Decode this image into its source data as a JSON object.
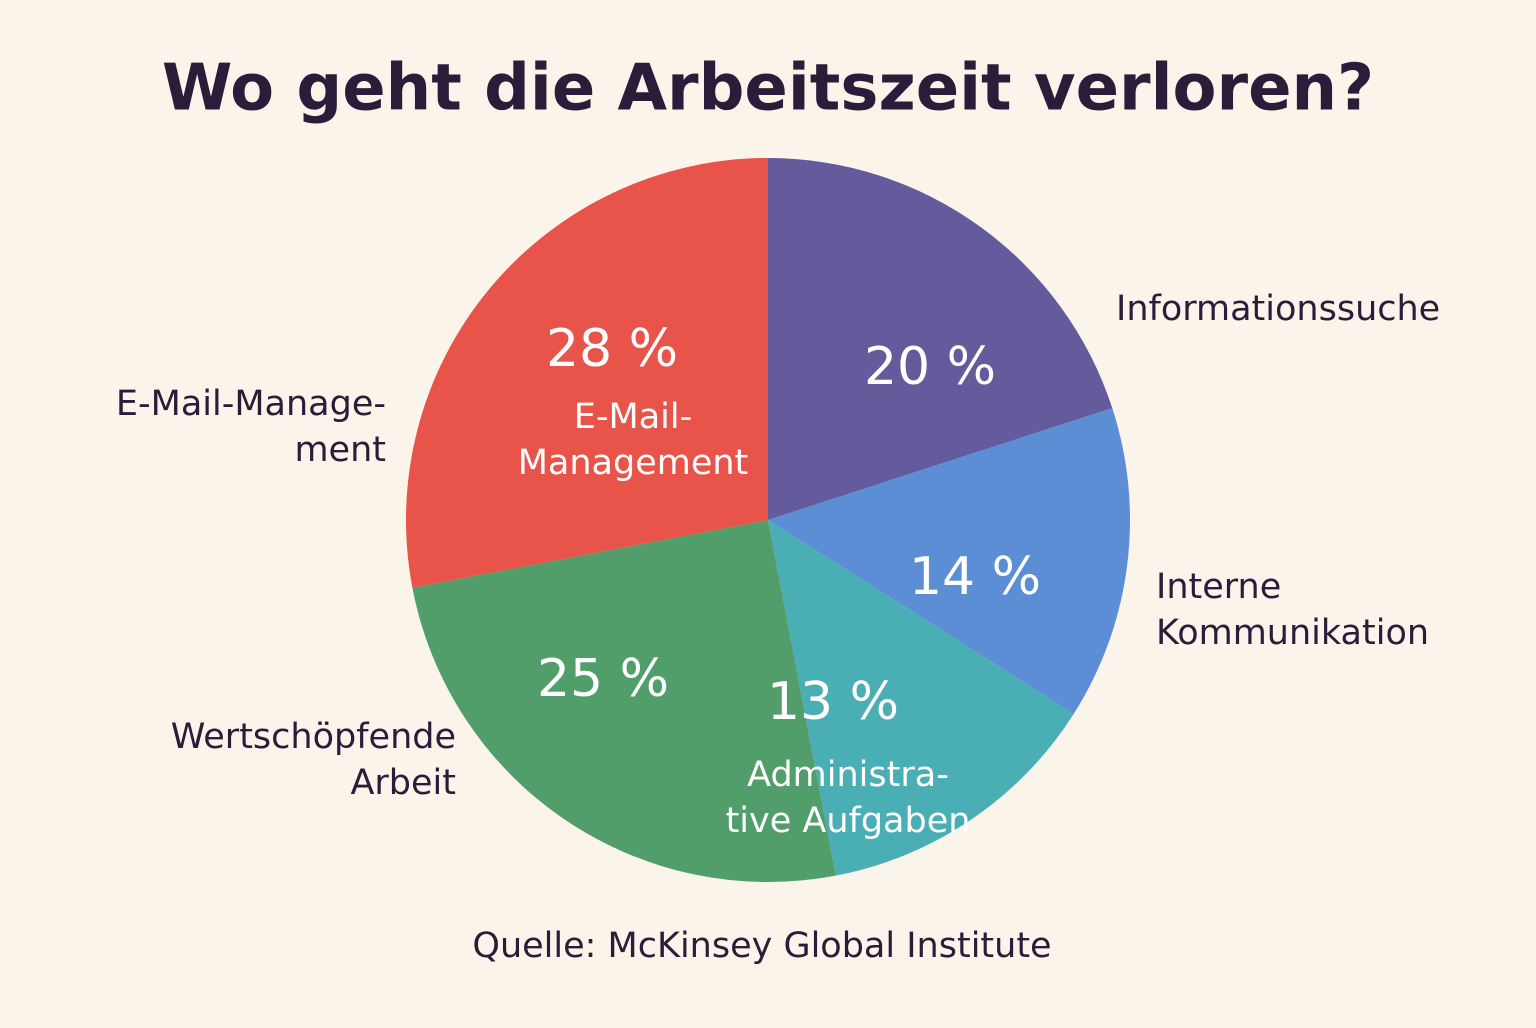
{
  "chart_data": {
    "type": "pie",
    "title": "Wo geht die Arbeitszeit verloren?",
    "categories": [
      [
        "Informationssuche"
      ],
      [
        "Interne",
        "Kommunikation"
      ],
      null,
      [
        "Wertschöpfende",
        "Arbeit"
      ],
      [
        "E-Mail-Manage-",
        "ment"
      ]
    ],
    "inner_labels": [
      null,
      null,
      [
        "Administra-",
        "tive Aufgaben"
      ],
      null,
      [
        "E-Mail-",
        "Management"
      ]
    ],
    "values": [
      20,
      14,
      13,
      25,
      28
    ],
    "value_labels": [
      "20 %",
      "14 %",
      "13 %",
      "25 %",
      "28 %"
    ],
    "colors": [
      "#635b9b",
      "#5b8ed4",
      "#4aaeb5",
      "#519e6a",
      "#e8534a"
    ],
    "source": "Quelle: McKinsey Global Institute"
  }
}
